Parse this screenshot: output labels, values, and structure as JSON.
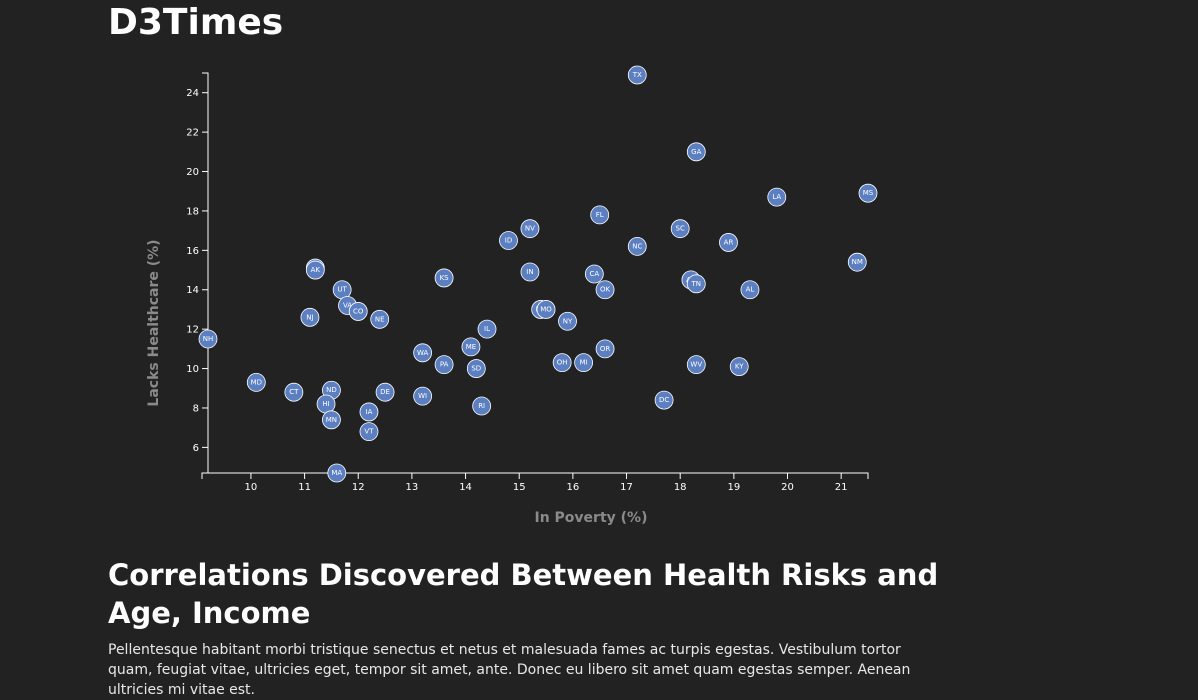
{
  "page": {
    "title": "D3Times"
  },
  "article": {
    "heading": "Correlations Discovered Between Health Risks and Age, Income",
    "body": "Pellentesque habitant morbi tristique senectus et netus et malesuada fames ac turpis egestas. Vestibulum tortor quam, feugiat vitae, ultricies eget, tempor sit amet, ante. Donec eu libero sit amet quam egestas semper. Aenean ultricies mi vitae est."
  },
  "colors": {
    "background": "#222222",
    "marker": "#5b7fc0",
    "axis_title": "#8a8a8a"
  },
  "chart_data": {
    "type": "scatter",
    "xlabel": "In Poverty (%)",
    "ylabel": "Lacks Healthcare (%)",
    "xlim": [
      9.2,
      21.5
    ],
    "ylim": [
      4.7,
      25.0
    ],
    "x_ticks": [
      10,
      11,
      12,
      13,
      14,
      15,
      16,
      17,
      18,
      19,
      20,
      21
    ],
    "y_ticks": [
      6,
      8,
      10,
      12,
      14,
      16,
      18,
      20,
      22,
      24
    ],
    "grid": false,
    "points": [
      {
        "label": "TX",
        "x": 17.2,
        "y": 24.9
      },
      {
        "label": "GA",
        "x": 18.3,
        "y": 21.0
      },
      {
        "label": "MS",
        "x": 21.5,
        "y": 18.9
      },
      {
        "label": "LA",
        "x": 19.8,
        "y": 18.7
      },
      {
        "label": "FL",
        "x": 16.5,
        "y": 17.8
      },
      {
        "label": "NV",
        "x": 15.2,
        "y": 17.1
      },
      {
        "label": "SC",
        "x": 18.0,
        "y": 17.1
      },
      {
        "label": "ID",
        "x": 14.8,
        "y": 16.5
      },
      {
        "label": "AR",
        "x": 18.9,
        "y": 16.4
      },
      {
        "label": "NC",
        "x": 17.2,
        "y": 16.2
      },
      {
        "label": "NM",
        "x": 21.3,
        "y": 15.4
      },
      {
        "label": "WY",
        "x": 11.2,
        "y": 15.1
      },
      {
        "label": "AK",
        "x": 11.2,
        "y": 15.0
      },
      {
        "label": "IN",
        "x": 15.2,
        "y": 14.9
      },
      {
        "label": "CA",
        "x": 16.4,
        "y": 14.8
      },
      {
        "label": "KS",
        "x": 13.6,
        "y": 14.6
      },
      {
        "label": "AZ",
        "x": 18.2,
        "y": 14.5
      },
      {
        "label": "TN",
        "x": 18.3,
        "y": 14.3
      },
      {
        "label": "OK",
        "x": 16.6,
        "y": 14.0
      },
      {
        "label": "UT",
        "x": 11.7,
        "y": 14.0
      },
      {
        "label": "AL",
        "x": 19.3,
        "y": 14.0
      },
      {
        "label": "VA",
        "x": 11.8,
        "y": 13.2
      },
      {
        "label": "CO",
        "x": 12.0,
        "y": 12.9
      },
      {
        "label": "MT",
        "x": 15.4,
        "y": 13.0
      },
      {
        "label": "MO",
        "x": 15.5,
        "y": 13.0
      },
      {
        "label": "NJ",
        "x": 11.1,
        "y": 12.6
      },
      {
        "label": "NE",
        "x": 12.4,
        "y": 12.5
      },
      {
        "label": "NY",
        "x": 15.9,
        "y": 12.4
      },
      {
        "label": "IL",
        "x": 14.4,
        "y": 12.0
      },
      {
        "label": "NH",
        "x": 9.2,
        "y": 11.5
      },
      {
        "label": "ME",
        "x": 14.1,
        "y": 11.1
      },
      {
        "label": "OR",
        "x": 16.6,
        "y": 11.0
      },
      {
        "label": "WA",
        "x": 13.2,
        "y": 10.8
      },
      {
        "label": "MI",
        "x": 16.2,
        "y": 10.3
      },
      {
        "label": "OH",
        "x": 15.8,
        "y": 10.3
      },
      {
        "label": "PA",
        "x": 13.6,
        "y": 10.2
      },
      {
        "label": "WV",
        "x": 18.3,
        "y": 10.2
      },
      {
        "label": "KY",
        "x": 19.1,
        "y": 10.1
      },
      {
        "label": "SD",
        "x": 14.2,
        "y": 10.0
      },
      {
        "label": "MD",
        "x": 10.1,
        "y": 9.3
      },
      {
        "label": "ND",
        "x": 11.5,
        "y": 8.9
      },
      {
        "label": "CT",
        "x": 10.8,
        "y": 8.8
      },
      {
        "label": "DE",
        "x": 12.5,
        "y": 8.8
      },
      {
        "label": "WI",
        "x": 13.2,
        "y": 8.6
      },
      {
        "label": "DC",
        "x": 17.7,
        "y": 8.4
      },
      {
        "label": "HI",
        "x": 11.4,
        "y": 8.2
      },
      {
        "label": "RI",
        "x": 14.3,
        "y": 8.1
      },
      {
        "label": "IA",
        "x": 12.2,
        "y": 7.8
      },
      {
        "label": "MN",
        "x": 11.5,
        "y": 7.4
      },
      {
        "label": "VT",
        "x": 12.2,
        "y": 6.8
      },
      {
        "label": "MA",
        "x": 11.6,
        "y": 4.7
      }
    ]
  }
}
